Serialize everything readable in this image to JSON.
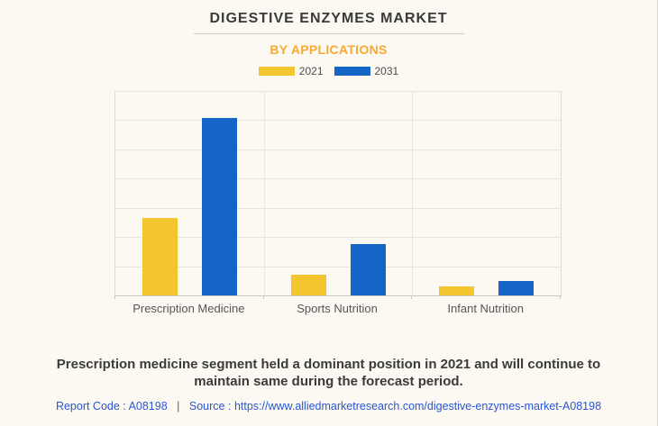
{
  "header": {
    "title": "DIGESTIVE ENZYMES MARKET",
    "subtitle": "BY APPLICATIONS"
  },
  "chart_data": {
    "type": "bar",
    "title": "DIGESTIVE ENZYMES MARKET",
    "subtitle": "BY APPLICATIONS",
    "categories": [
      "Prescription Medicine",
      "Sports Nutrition",
      "Infant Nutrition"
    ],
    "series": [
      {
        "name": "2021",
        "color": "#F3C52F",
        "values": [
          38,
          10,
          4.3
        ]
      },
      {
        "name": "2031",
        "color": "#1565C6",
        "values": [
          87,
          25,
          7
        ]
      }
    ],
    "xlabel": "",
    "ylabel": "",
    "ylim": [
      0,
      100
    ],
    "y_axis_labels_visible": false,
    "grid": true,
    "legend_position": "top"
  },
  "footer": {
    "summary": "Prescription medicine segment held a dominant position in 2021 and will continue to maintain same during the forecast period.",
    "report_code_label": "Report Code :",
    "report_code_value": "A08198",
    "separator": "|",
    "source_label": "Source :",
    "source_url": "https://www.alliedmarketresearch.com/digestive-enzymes-market-A08198"
  },
  "colors": {
    "background": "#FBF9F2",
    "accent_orange": "#F9A832",
    "bar_yellow": "#F3C52F",
    "bar_blue": "#1565C6",
    "link_blue": "#2A56D6"
  }
}
